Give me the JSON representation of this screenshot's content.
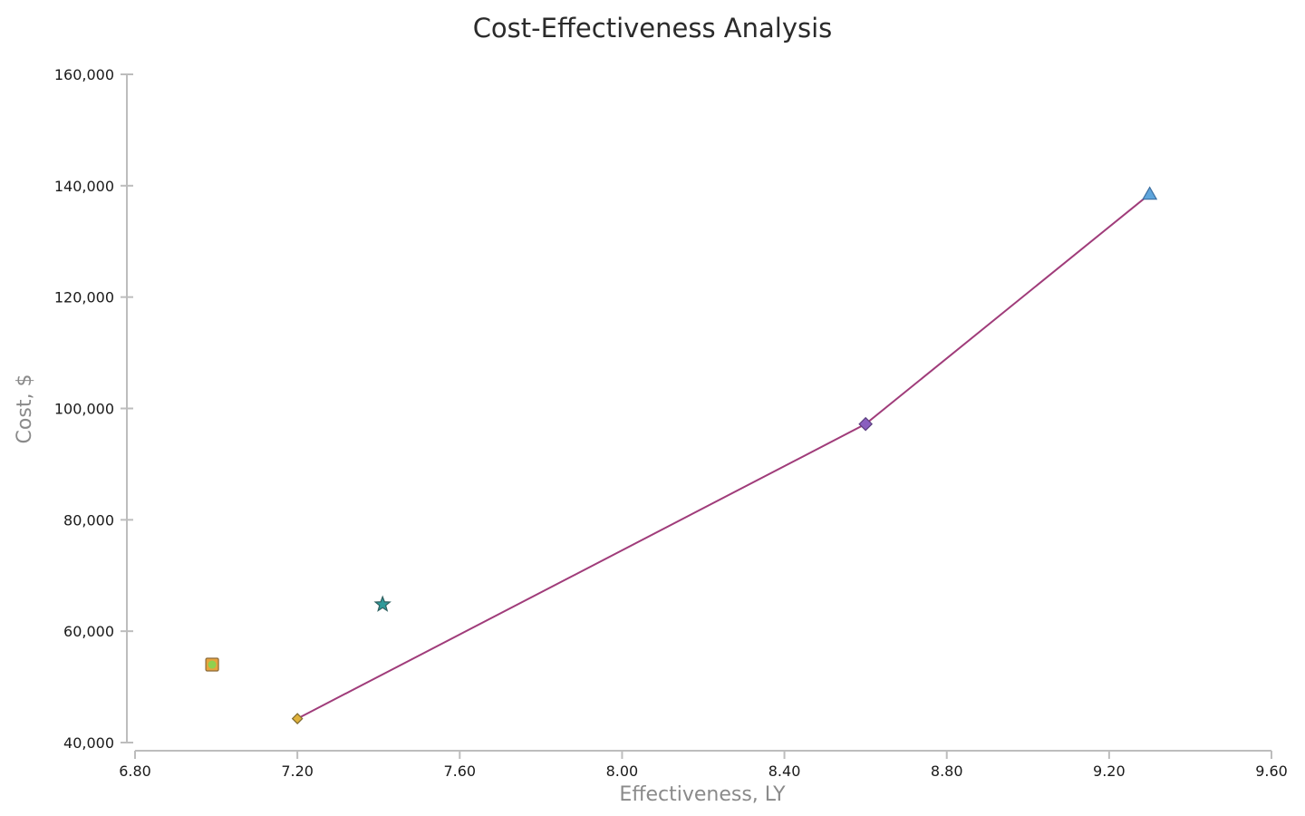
{
  "chart_data": {
    "type": "scatter",
    "title": "Cost-Effectiveness Analysis",
    "xlabel": "Effectiveness, LY",
    "ylabel": "Cost, $",
    "xlim": [
      6.8,
      9.6
    ],
    "ylim": [
      40000,
      160000
    ],
    "x_ticks": [
      "6.80",
      "7.20",
      "7.60",
      "8.00",
      "8.40",
      "8.80",
      "9.20",
      "9.60"
    ],
    "x_tick_values": [
      6.8,
      7.2,
      7.6,
      8.0,
      8.4,
      8.8,
      9.2,
      9.6
    ],
    "y_ticks": [
      "40,000",
      "60,000",
      "80,000",
      "100,000",
      "120,000",
      "140,000",
      "160,000"
    ],
    "y_tick_values": [
      40000,
      60000,
      80000,
      100000,
      120000,
      140000,
      160000
    ],
    "grid": false,
    "legend": "none",
    "points": [
      {
        "x": 6.99,
        "y": 54000,
        "marker": "square-with-dot",
        "fill": "#e8a33d",
        "inner": "#8fd14f",
        "stroke": "#8a6a3a"
      },
      {
        "x": 7.2,
        "y": 44300,
        "marker": "small-diamond",
        "fill": "#e0b23c",
        "stroke": "#7f6a2d"
      },
      {
        "x": 7.41,
        "y": 64800,
        "marker": "star",
        "fill": "#2e9a9a",
        "stroke": "#2f6060"
      },
      {
        "x": 8.6,
        "y": 97200,
        "marker": "diamond",
        "fill": "#8a5fbf",
        "stroke": "#5a3e7e"
      },
      {
        "x": 9.3,
        "y": 138500,
        "marker": "triangle",
        "fill": "#5ea5dc",
        "stroke": "#3d6fa0"
      }
    ],
    "frontier": {
      "color": "#a03c7a",
      "x": [
        7.2,
        8.6,
        9.3
      ],
      "y": [
        44300,
        97200,
        138500
      ]
    }
  }
}
